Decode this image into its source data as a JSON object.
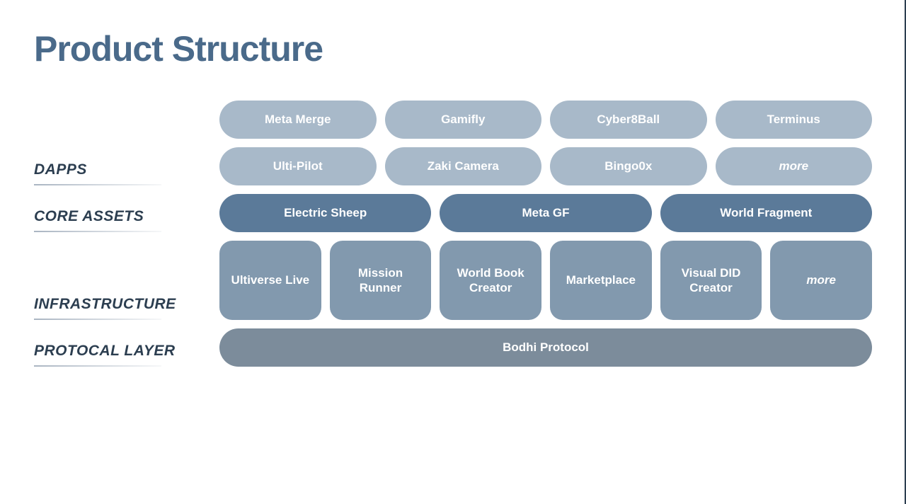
{
  "title": "Product Structure",
  "colors": {
    "title": "#4a6a8a",
    "label": "#2c3e50",
    "dapps_bg": "#a8b9c9",
    "core_bg": "#5b7a99",
    "infra_bg": "#8299ae",
    "protocol_bg": "#7c8c9b",
    "pill_text": "#ffffff"
  },
  "layers": {
    "dapps": {
      "label": "DAPPS",
      "row1": [
        "Meta Merge",
        "Gamifly",
        "Cyber8Ball",
        "Terminus"
      ],
      "row2": [
        "Ulti-Pilot",
        "Zaki Camera",
        "Bingo0x",
        "more"
      ],
      "row2_italic_last": true
    },
    "core": {
      "label": "CORE ASSETS",
      "items": [
        "Electric Sheep",
        "Meta GF",
        "World Fragment"
      ]
    },
    "infra": {
      "label": "INFRASTRUCTURE",
      "items": [
        "Ultiverse Live",
        "Mission Runner",
        "World Book Creator",
        "Marketplace",
        "Visual DID Creator",
        "more"
      ],
      "italic_last": true
    },
    "protocol": {
      "label": "PROTOCAL LAYER",
      "items": [
        "Bodhi Protocol"
      ]
    }
  },
  "styling": {
    "title_fontsize": 50,
    "label_fontsize": 21,
    "pill_fontsize": 17,
    "pill_height": 54,
    "block_height": 112,
    "pill_radius": 999,
    "block_radius": 18,
    "row_gap": 12,
    "label_col_width": 248
  }
}
